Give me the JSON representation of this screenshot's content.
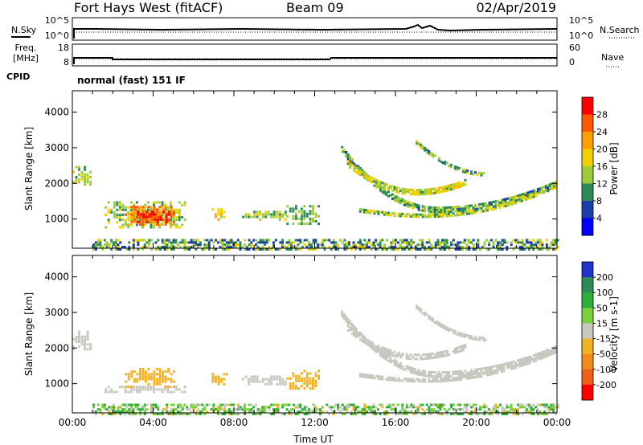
{
  "header": {
    "title": "Fort Hays West (fitACF)",
    "beam": "Beam 09",
    "date": "02/Apr/2019",
    "mode": "normal (fast) 151 IF"
  },
  "status_panels": {
    "nsky": {
      "left_label": "N.Sky",
      "right_label": "N.Search",
      "left_ticks": [
        "10^5",
        "10^0"
      ],
      "right_ticks": [
        "10^5",
        "10^0"
      ]
    },
    "freq": {
      "left_label_1": "Freq.",
      "left_label_2": "[MHz]",
      "right_label": "Nave",
      "left_ticks": [
        "18",
        "8"
      ],
      "right_ticks": [
        "60",
        "0"
      ]
    },
    "cpid_label": "CPID"
  },
  "chart_data": [
    {
      "type": "heatmap",
      "name": "power",
      "ylabel": "Slant Range [km]",
      "xlabel": "",
      "xlim": [
        0,
        24
      ],
      "ylim": [
        180,
        4600
      ],
      "y_ticks": [
        1000,
        2000,
        3000,
        4000
      ],
      "colorbar": {
        "label": "Power [dB]",
        "ticks": [
          "28",
          "24",
          "20",
          "16",
          "12",
          "8",
          "4"
        ],
        "colors": [
          "#ff0000",
          "#ff5a00",
          "#ffa000",
          "#f0d000",
          "#9ccc3c",
          "#2e8b57",
          "#1a3faa",
          "#0000ff"
        ]
      },
      "regions": [
        {
          "t0": 0.0,
          "t1": 0.9,
          "r0": 2000,
          "r1": 2500,
          "dB": 12
        },
        {
          "t0": 1.6,
          "t1": 5.6,
          "r0": 800,
          "r1": 1550,
          "dB": 12
        },
        {
          "t0": 2.6,
          "t1": 5.0,
          "r0": 880,
          "r1": 1400,
          "dB": 22
        },
        {
          "t0": 3.2,
          "t1": 4.8,
          "r0": 950,
          "r1": 1260,
          "dB": 28
        },
        {
          "t0": 6.9,
          "t1": 7.6,
          "r0": 1020,
          "r1": 1350,
          "dB": 16
        },
        {
          "t0": 8.4,
          "t1": 10.6,
          "r0": 1020,
          "r1": 1300,
          "dB": 12
        },
        {
          "t0": 10.6,
          "t1": 12.2,
          "r0": 900,
          "r1": 1400,
          "dB": 10
        }
      ],
      "arcs": [
        {
          "t0": 13.3,
          "t1": 24.0,
          "r_start": 3000,
          "r_min": 1300,
          "t_min": 18.0,
          "r_end": 2050,
          "width": 140,
          "dB": 10
        },
        {
          "t0": 13.6,
          "t1": 19.5,
          "r_start": 2600,
          "r_min": 1800,
          "t_min": 17.0,
          "r_end": 2100,
          "width": 150,
          "dB": 14
        },
        {
          "t0": 14.2,
          "t1": 24.0,
          "r_start": 1300,
          "r_min": 1150,
          "t_min": 17.5,
          "r_end": 2000,
          "width": 110,
          "dB": 12
        },
        {
          "t0": 17.0,
          "t1": 20.5,
          "r_start": 3200,
          "r_min": 2300,
          "t_min": 20.5,
          "r_end": 2300,
          "width": 90,
          "dB": 10
        }
      ],
      "near_range": {
        "t0": 1.0,
        "t1": 24.0,
        "r0": 180,
        "r1": 450
      }
    },
    {
      "type": "heatmap",
      "name": "velocity",
      "ylabel": "Slant Range [km]",
      "xlabel": "Time UT",
      "xlim": [
        0,
        24
      ],
      "ylim": [
        180,
        4600
      ],
      "x_ticks": [
        "00:00",
        "04:00",
        "08:00",
        "12:00",
        "16:00",
        "20:00",
        "00:00"
      ],
      "y_ticks": [
        1000,
        2000,
        3000,
        4000
      ],
      "colorbar": {
        "label": "Velocity [m s-1]",
        "ticks": [
          "200",
          "100",
          "50",
          "15",
          "-15",
          "-50",
          "-100",
          "-200"
        ],
        "colors": [
          "#2233cc",
          "#2e8b57",
          "#2fae3a",
          "#7ad13c",
          "#c8c8c0",
          "#f2b323",
          "#f28c1a",
          "#f06018",
          "#ff0000"
        ]
      },
      "regions": [
        {
          "t0": 0.0,
          "t1": 0.9,
          "r0": 2000,
          "r1": 2500,
          "v": 0
        },
        {
          "t0": 1.6,
          "t1": 5.6,
          "r0": 800,
          "r1": 1000,
          "v": 0
        },
        {
          "t0": 2.6,
          "t1": 5.0,
          "r0": 950,
          "r1": 1500,
          "v": -40
        },
        {
          "t0": 6.9,
          "t1": 7.6,
          "r0": 1020,
          "r1": 1350,
          "v": -40
        },
        {
          "t0": 8.4,
          "t1": 10.6,
          "r0": 1020,
          "r1": 1300,
          "v": 0
        },
        {
          "t0": 10.6,
          "t1": 12.2,
          "r0": 900,
          "r1": 1400,
          "v": -40
        }
      ],
      "arcs": [
        {
          "t0": 13.3,
          "t1": 24.0,
          "r_start": 3000,
          "r_min": 1300,
          "t_min": 18.0,
          "r_end": 2050,
          "width": 140,
          "v": 0
        },
        {
          "t0": 13.6,
          "t1": 19.5,
          "r_start": 2600,
          "r_min": 1800,
          "t_min": 17.0,
          "r_end": 2100,
          "width": 150,
          "v": 0
        },
        {
          "t0": 14.2,
          "t1": 24.0,
          "r_start": 1300,
          "r_min": 1150,
          "t_min": 17.5,
          "r_end": 2000,
          "width": 110,
          "v": 0
        },
        {
          "t0": 17.0,
          "t1": 20.5,
          "r_start": 3200,
          "r_min": 2300,
          "t_min": 20.5,
          "r_end": 2300,
          "width": 90,
          "v": 0
        }
      ],
      "near_range": {
        "t0": 1.0,
        "t1": 24.0,
        "r0": 180,
        "r1": 450
      }
    }
  ]
}
